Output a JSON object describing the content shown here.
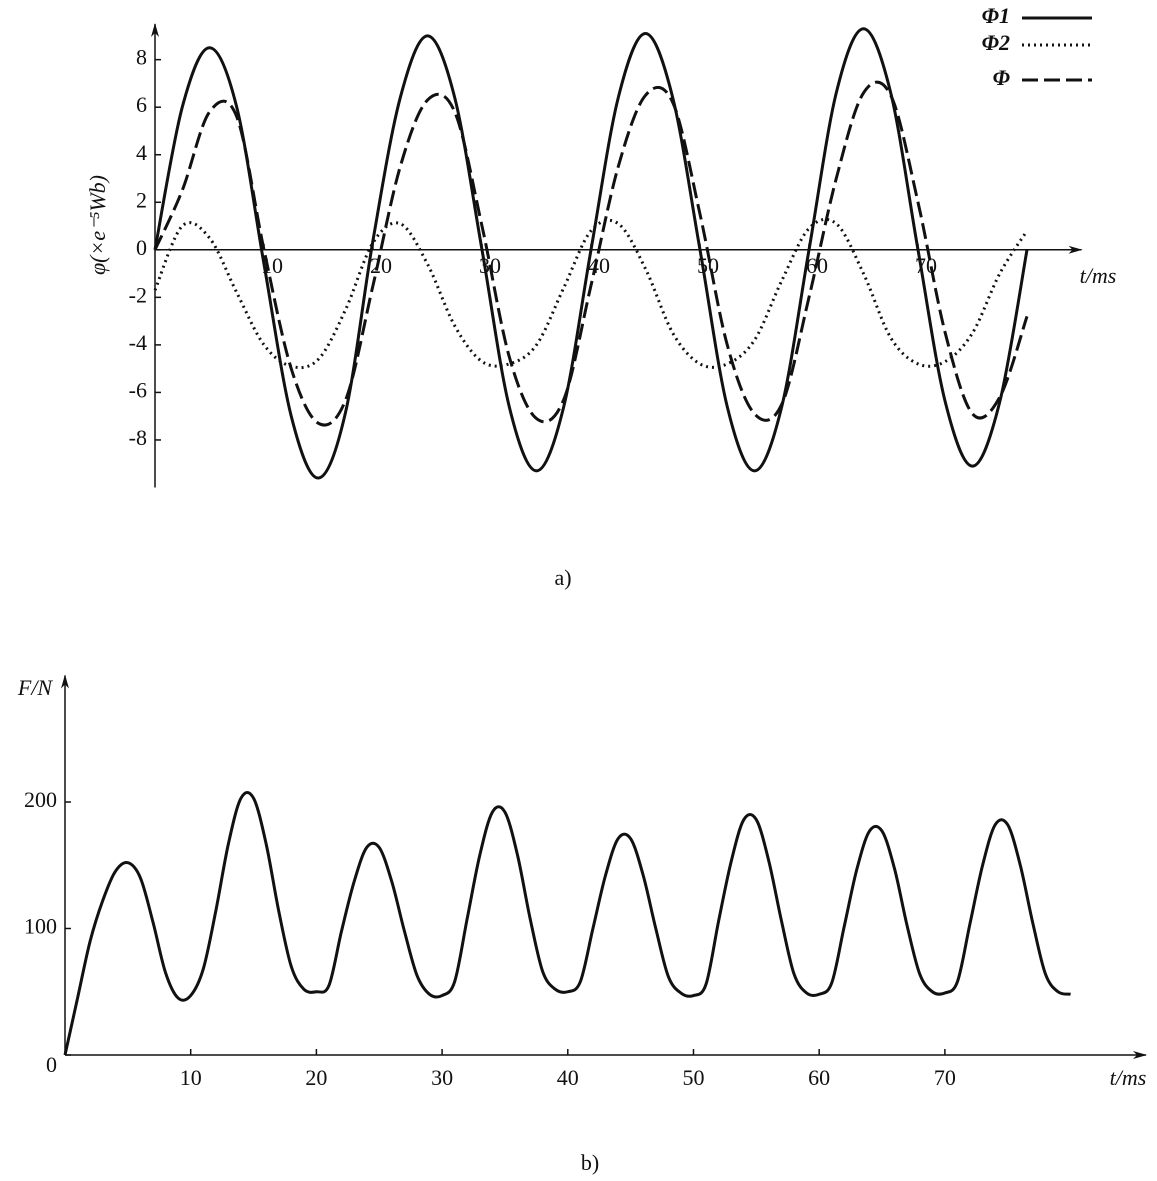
{
  "chart_data": [
    {
      "type": "line",
      "xlabel": "t/ms",
      "ylabel": "φ(×e⁻⁵Wb)",
      "caption": "a)",
      "x": [
        0,
        2.5,
        5,
        7.5,
        10,
        12.5,
        15,
        17.5,
        20,
        22.5,
        25,
        27.5,
        30,
        32.5,
        35,
        37.5,
        40,
        42.5,
        45,
        47.5,
        50,
        52.5,
        55,
        57.5,
        60,
        62.5,
        65,
        67.5,
        70,
        72.5,
        75,
        77.5,
        80
      ],
      "series": [
        {
          "name": "Φ1",
          "color": "#111111",
          "style": "solid",
          "values": [
            0,
            6.0,
            8.5,
            6.0,
            -0.6,
            -7.0,
            -9.6,
            -6.8,
            0.4,
            6.4,
            9.0,
            6.4,
            0,
            -6.6,
            -9.3,
            -6.6,
            0,
            6.4,
            9.1,
            6.4,
            0,
            -6.6,
            -9.3,
            -6.6,
            0,
            6.6,
            9.3,
            6.6,
            0,
            -6.4,
            -9.1,
            -6.4,
            0
          ]
        },
        {
          "name": "Φ2",
          "color": "#111111",
          "style": "dotted",
          "values": [
            -1.7,
            1.0,
            0.5,
            -1.8,
            -4.0,
            -4.9,
            -4.6,
            -2.5,
            0.3,
            1.1,
            -0.6,
            -3.2,
            -4.7,
            -4.8,
            -4.0,
            -1.6,
            0.8,
            1.1,
            -0.8,
            -3.5,
            -4.8,
            -4.8,
            -3.8,
            -1.3,
            0.9,
            1.1,
            -1.0,
            -3.7,
            -4.8,
            -4.7,
            -3.5,
            -1.0,
            0.8
          ]
        },
        {
          "name": "Φ",
          "color": "#111111",
          "style": "dashed",
          "values": [
            0,
            2.5,
            5.8,
            5.6,
            0,
            -5,
            -7.3,
            -6.3,
            -1.5,
            3.5,
            6.3,
            5.8,
            1,
            -4.5,
            -7.1,
            -6.3,
            -1.5,
            3.5,
            6.5,
            6.2,
            1.5,
            -4,
            -6.9,
            -6.5,
            -2,
            3,
            6.6,
            6.5,
            2,
            -3.5,
            -6.9,
            -6.2,
            -2.8
          ]
        }
      ],
      "xlim": [
        0,
        85
      ],
      "ylim": [
        -10,
        9.5
      ],
      "xticks": [
        10,
        20,
        30,
        40,
        50,
        60,
        70
      ],
      "yticks": [
        -8,
        -6,
        -4,
        -2,
        0,
        2,
        4,
        6,
        8
      ],
      "legend": "upper right"
    },
    {
      "type": "line",
      "xlabel": "t/ms",
      "ylabel": "F/N",
      "caption": "b)",
      "x": [
        0,
        1,
        2,
        3,
        4,
        5,
        6,
        7,
        8,
        9,
        10,
        11,
        12,
        13,
        14,
        15,
        16,
        17,
        18,
        19,
        20,
        21,
        22,
        23,
        24,
        25,
        26,
        27,
        28,
        29,
        30,
        31,
        32,
        33,
        34,
        35,
        36,
        37,
        38,
        39,
        40,
        41,
        42,
        43,
        44,
        45,
        46,
        47,
        48,
        49,
        50,
        51,
        52,
        53,
        54,
        55,
        56,
        57,
        58,
        59,
        60,
        61,
        62,
        63,
        64,
        65,
        66,
        67,
        68,
        69,
        70,
        71,
        72,
        73,
        74,
        75,
        76,
        77,
        78,
        79,
        80
      ],
      "values": [
        0,
        45,
        90,
        122,
        145,
        152,
        140,
        105,
        65,
        45,
        47,
        68,
        114,
        167,
        203,
        203,
        167,
        114,
        70,
        52,
        50,
        55,
        98,
        137,
        164,
        164,
        137,
        98,
        63,
        48,
        47,
        58,
        108,
        158,
        192,
        192,
        158,
        108,
        66,
        52,
        50,
        58,
        100,
        142,
        171,
        171,
        142,
        100,
        62,
        49,
        47,
        56,
        106,
        153,
        186,
        186,
        153,
        106,
        64,
        49,
        48,
        57,
        102,
        147,
        177,
        177,
        147,
        102,
        64,
        50,
        49,
        58,
        104,
        150,
        182,
        182,
        150,
        104,
        64,
        50,
        48
      ],
      "color": "#111111",
      "xlim": [
        0,
        86
      ],
      "ylim": [
        0,
        300
      ],
      "xticks": [
        10,
        20,
        30,
        40,
        50,
        60,
        70
      ],
      "yticks": [
        0,
        100,
        200
      ]
    }
  ]
}
